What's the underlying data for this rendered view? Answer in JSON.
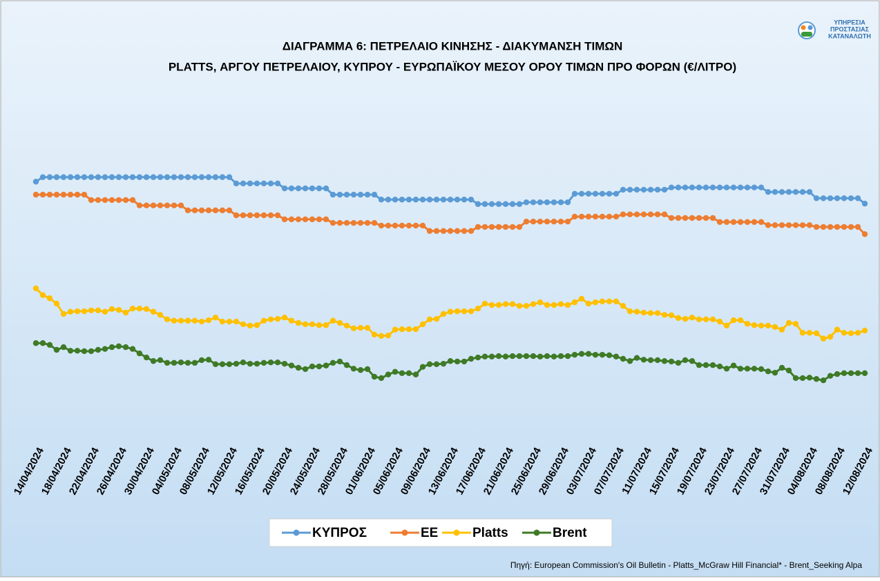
{
  "logo": {
    "lines": [
      "ΥΠΗΡΕΣΙΑ",
      "ΠΡΟΣΤΑΣΙΑΣ",
      "ΚΑΤΑΝΑΛΩΤΗ"
    ]
  },
  "chart_data": {
    "type": "line",
    "title": "ΔΙΑΓΡΑΜΜΑ 6: ΠΕΤΡΕΛΑΙΟ ΚΙΝΗΣΗΣ - ΔΙΑΚΥΜΑΝΣΗ ΤΙΜΩΝ",
    "subtitle": "PLATTS, ΑΡΓΟΥ ΠΕΤΡΕΛΑΙΟΥ, ΚΥΠΡΟΥ - ΕΥΡΩΠΑΪΚΟΥ ΜΕΣΟΥ ΟΡΟΥ ΤΙΜΩΝ ΠΡΟ ΦΟΡΩΝ (€/ΛΙΤΡΟ)",
    "source": "Πηγή:  European Commission's Oil Bulletin - Platts_McGraw Hill Financial* - Brent_Seeking Alpa",
    "legend": "bottom",
    "ylim": [
      0.3,
      1.1
    ],
    "categories": [
      "14/04/2024",
      null,
      null,
      null,
      "18/04/2024",
      null,
      null,
      null,
      "22/04/2024",
      null,
      null,
      null,
      "26/04/2024",
      null,
      null,
      null,
      "30/04/2024",
      null,
      null,
      null,
      "04/05/2024",
      null,
      null,
      null,
      "08/05/2024",
      null,
      null,
      null,
      "12/05/2024",
      null,
      null,
      null,
      "16/05/2024",
      null,
      null,
      null,
      "20/05/2024",
      null,
      null,
      null,
      "24/05/2024",
      null,
      null,
      null,
      "28/05/2024",
      null,
      null,
      null,
      "01/06/2024",
      null,
      null,
      null,
      "05/06/2024",
      null,
      null,
      null,
      "09/06/2024",
      null,
      null,
      null,
      "13/06/2024",
      null,
      null,
      null,
      "17/06/2024",
      null,
      null,
      null,
      "21/06/2024",
      null,
      null,
      null,
      "25/06/2024",
      null,
      null,
      null,
      "29/06/2024",
      null,
      null,
      null,
      "03/07/2024",
      null,
      null,
      null,
      "07/07/2024",
      null,
      null,
      null,
      "11/07/2024",
      null,
      null,
      null,
      "15/07/2024",
      null,
      null,
      null,
      "19/07/2024",
      null,
      null,
      null,
      "23/07/2024",
      null,
      null,
      null,
      "27/07/2024",
      null,
      null,
      null,
      "31/07/2024",
      null,
      null,
      null,
      "04/08/2024",
      null,
      null,
      null,
      "08/08/2024",
      null,
      null,
      null,
      "12/08/2024"
    ],
    "series": [
      {
        "name": "ΚΥΠΡΟΣ",
        "color": "#5b9bd5",
        "values": [
          0.895,
          0.905,
          0.905,
          0.905,
          0.905,
          0.905,
          0.905,
          0.905,
          0.905,
          0.905,
          0.905,
          0.905,
          0.905,
          0.905,
          0.905,
          0.905,
          0.905,
          0.905,
          0.905,
          0.905,
          0.905,
          0.905,
          0.905,
          0.905,
          0.905,
          0.905,
          0.905,
          0.905,
          0.905,
          0.891,
          0.891,
          0.891,
          0.891,
          0.891,
          0.891,
          0.891,
          0.88,
          0.88,
          0.88,
          0.88,
          0.88,
          0.88,
          0.88,
          0.866,
          0.866,
          0.866,
          0.866,
          0.866,
          0.866,
          0.866,
          0.855,
          0.855,
          0.855,
          0.855,
          0.855,
          0.855,
          0.855,
          0.855,
          0.855,
          0.855,
          0.855,
          0.855,
          0.855,
          0.855,
          0.845,
          0.845,
          0.845,
          0.845,
          0.845,
          0.845,
          0.845,
          0.849,
          0.849,
          0.849,
          0.849,
          0.849,
          0.849,
          0.849,
          0.868,
          0.868,
          0.868,
          0.868,
          0.868,
          0.868,
          0.868,
          0.877,
          0.877,
          0.877,
          0.877,
          0.877,
          0.877,
          0.877,
          0.882,
          0.882,
          0.882,
          0.882,
          0.882,
          0.882,
          0.882,
          0.882,
          0.882,
          0.882,
          0.882,
          0.882,
          0.882,
          0.882,
          0.872,
          0.872,
          0.872,
          0.872,
          0.872,
          0.872,
          0.872,
          0.858,
          0.858,
          0.858,
          0.858,
          0.858,
          0.858,
          0.858,
          0.846
        ]
      },
      {
        "name": "ΕΕ",
        "color": "#ed7d31",
        "values": [
          0.866,
          0.866,
          0.866,
          0.866,
          0.866,
          0.866,
          0.866,
          0.866,
          0.854,
          0.854,
          0.854,
          0.854,
          0.854,
          0.854,
          0.854,
          0.842,
          0.842,
          0.842,
          0.842,
          0.842,
          0.842,
          0.842,
          0.831,
          0.831,
          0.831,
          0.831,
          0.831,
          0.831,
          0.831,
          0.82,
          0.82,
          0.82,
          0.82,
          0.82,
          0.82,
          0.82,
          0.811,
          0.811,
          0.811,
          0.811,
          0.811,
          0.811,
          0.811,
          0.803,
          0.803,
          0.803,
          0.803,
          0.803,
          0.803,
          0.803,
          0.797,
          0.797,
          0.797,
          0.797,
          0.797,
          0.797,
          0.797,
          0.785,
          0.785,
          0.785,
          0.785,
          0.785,
          0.785,
          0.785,
          0.794,
          0.794,
          0.794,
          0.794,
          0.794,
          0.794,
          0.794,
          0.806,
          0.806,
          0.806,
          0.806,
          0.806,
          0.806,
          0.806,
          0.817,
          0.817,
          0.817,
          0.817,
          0.817,
          0.817,
          0.817,
          0.822,
          0.822,
          0.822,
          0.822,
          0.822,
          0.822,
          0.822,
          0.814,
          0.814,
          0.814,
          0.814,
          0.814,
          0.814,
          0.814,
          0.805,
          0.805,
          0.805,
          0.805,
          0.805,
          0.805,
          0.805,
          0.798,
          0.798,
          0.798,
          0.798,
          0.798,
          0.798,
          0.798,
          0.794,
          0.794,
          0.794,
          0.794,
          0.794,
          0.794,
          0.794,
          0.778
        ]
      },
      {
        "name": "Platts",
        "color": "#ffc000",
        "values": [
          0.657,
          0.642,
          0.635,
          0.623,
          0.6,
          0.605,
          0.606,
          0.606,
          0.608,
          0.608,
          0.605,
          0.611,
          0.609,
          0.603,
          0.612,
          0.612,
          0.611,
          0.605,
          0.598,
          0.588,
          0.585,
          0.585,
          0.585,
          0.585,
          0.583,
          0.586,
          0.592,
          0.583,
          0.583,
          0.583,
          0.577,
          0.574,
          0.575,
          0.585,
          0.588,
          0.589,
          0.592,
          0.585,
          0.58,
          0.577,
          0.577,
          0.575,
          0.575,
          0.585,
          0.58,
          0.574,
          0.568,
          0.569,
          0.569,
          0.554,
          0.551,
          0.552,
          0.565,
          0.566,
          0.566,
          0.566,
          0.577,
          0.588,
          0.589,
          0.6,
          0.605,
          0.606,
          0.606,
          0.606,
          0.612,
          0.623,
          0.62,
          0.62,
          0.622,
          0.622,
          0.618,
          0.618,
          0.622,
          0.626,
          0.62,
          0.62,
          0.622,
          0.62,
          0.626,
          0.634,
          0.623,
          0.626,
          0.628,
          0.628,
          0.628,
          0.618,
          0.606,
          0.605,
          0.603,
          0.602,
          0.602,
          0.598,
          0.597,
          0.591,
          0.589,
          0.592,
          0.588,
          0.588,
          0.588,
          0.583,
          0.574,
          0.586,
          0.586,
          0.578,
          0.575,
          0.574,
          0.574,
          0.571,
          0.565,
          0.58,
          0.578,
          0.558,
          0.558,
          0.557,
          0.545,
          0.549,
          0.565,
          0.558,
          0.557,
          0.558,
          0.563
        ]
      },
      {
        "name": "Brent",
        "color": "#3f7a26",
        "values": [
          0.535,
          0.535,
          0.531,
          0.52,
          0.526,
          0.518,
          0.518,
          0.517,
          0.517,
          0.52,
          0.522,
          0.526,
          0.528,
          0.526,
          0.522,
          0.512,
          0.503,
          0.495,
          0.497,
          0.491,
          0.491,
          0.492,
          0.491,
          0.491,
          0.497,
          0.498,
          0.488,
          0.488,
          0.488,
          0.489,
          0.492,
          0.489,
          0.489,
          0.491,
          0.492,
          0.492,
          0.489,
          0.485,
          0.48,
          0.477,
          0.483,
          0.483,
          0.485,
          0.491,
          0.494,
          0.486,
          0.478,
          0.475,
          0.477,
          0.46,
          0.457,
          0.465,
          0.471,
          0.468,
          0.468,
          0.465,
          0.482,
          0.488,
          0.488,
          0.489,
          0.495,
          0.494,
          0.494,
          0.5,
          0.503,
          0.505,
          0.505,
          0.506,
          0.505,
          0.506,
          0.506,
          0.506,
          0.506,
          0.505,
          0.506,
          0.505,
          0.506,
          0.506,
          0.509,
          0.511,
          0.511,
          0.509,
          0.509,
          0.508,
          0.505,
          0.5,
          0.495,
          0.502,
          0.498,
          0.497,
          0.497,
          0.495,
          0.494,
          0.491,
          0.497,
          0.495,
          0.486,
          0.486,
          0.486,
          0.483,
          0.478,
          0.485,
          0.478,
          0.478,
          0.478,
          0.477,
          0.472,
          0.469,
          0.48,
          0.474,
          0.457,
          0.457,
          0.458,
          0.455,
          0.452,
          0.462,
          0.466,
          0.468,
          0.468,
          0.468,
          0.468
        ]
      }
    ]
  }
}
